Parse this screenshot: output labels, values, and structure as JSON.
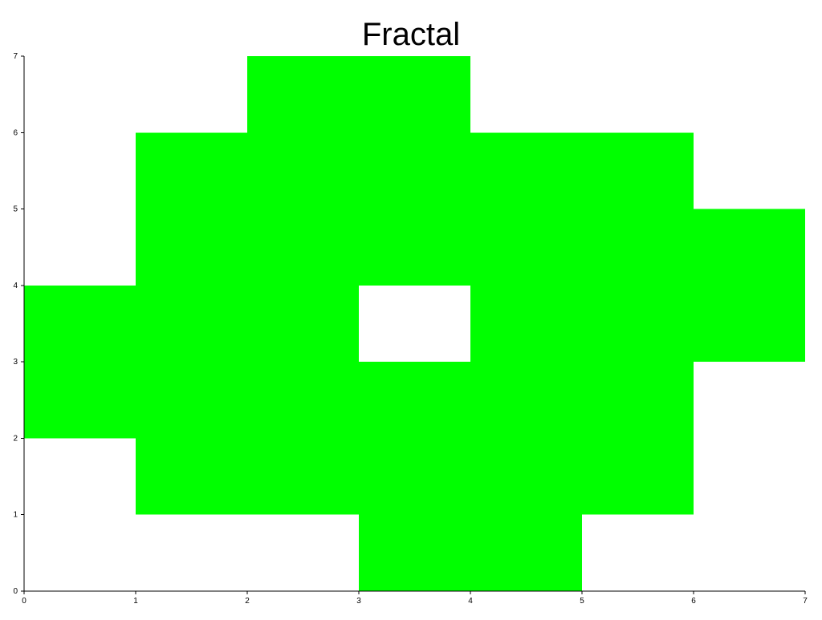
{
  "chart_data": {
    "type": "heatmap",
    "title": "Fractal",
    "xlabel": "",
    "ylabel": "",
    "xlim": [
      0,
      7
    ],
    "ylim": [
      0,
      7
    ],
    "x_ticks": [
      "0",
      "1",
      "2",
      "3",
      "4",
      "5",
      "6",
      "7"
    ],
    "y_ticks": [
      "0",
      "1",
      "2",
      "3",
      "4",
      "5",
      "6",
      "7"
    ],
    "grid": false,
    "fill_color": "#00ff00",
    "filled_cells": [
      {
        "x": 3,
        "y": 0
      },
      {
        "x": 4,
        "y": 0
      },
      {
        "x": 1,
        "y": 1
      },
      {
        "x": 2,
        "y": 1
      },
      {
        "x": 3,
        "y": 1
      },
      {
        "x": 4,
        "y": 1
      },
      {
        "x": 5,
        "y": 1
      },
      {
        "x": 0,
        "y": 2
      },
      {
        "x": 1,
        "y": 2
      },
      {
        "x": 2,
        "y": 2
      },
      {
        "x": 3,
        "y": 2
      },
      {
        "x": 4,
        "y": 2
      },
      {
        "x": 5,
        "y": 2
      },
      {
        "x": 0,
        "y": 3
      },
      {
        "x": 1,
        "y": 3
      },
      {
        "x": 2,
        "y": 3
      },
      {
        "x": 4,
        "y": 3
      },
      {
        "x": 5,
        "y": 3
      },
      {
        "x": 6,
        "y": 3
      },
      {
        "x": 1,
        "y": 4
      },
      {
        "x": 2,
        "y": 4
      },
      {
        "x": 3,
        "y": 4
      },
      {
        "x": 4,
        "y": 4
      },
      {
        "x": 5,
        "y": 4
      },
      {
        "x": 6,
        "y": 4
      },
      {
        "x": 1,
        "y": 5
      },
      {
        "x": 2,
        "y": 5
      },
      {
        "x": 3,
        "y": 5
      },
      {
        "x": 4,
        "y": 5
      },
      {
        "x": 5,
        "y": 5
      },
      {
        "x": 2,
        "y": 6
      },
      {
        "x": 3,
        "y": 6
      }
    ]
  }
}
